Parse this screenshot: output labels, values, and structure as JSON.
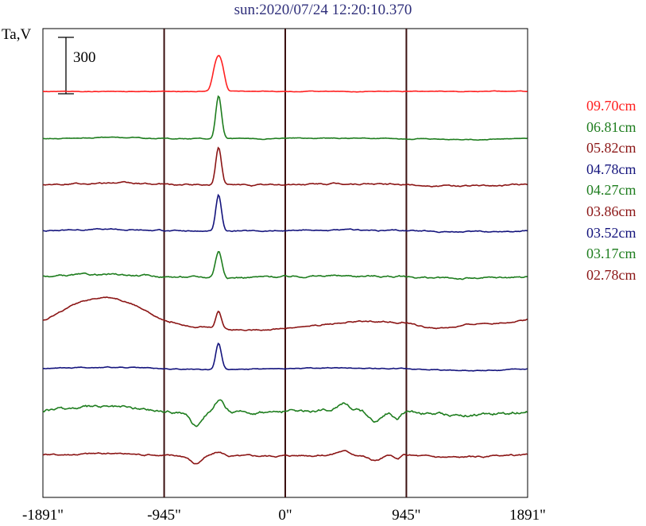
{
  "title": "sun:2020/07/24 12:20:10.370",
  "colors": {
    "title": "#2e2e7a",
    "red": "#ff2020",
    "green": "#1e7d1e",
    "maroon": "#8b1515",
    "blue": "#14147d",
    "axis": "#000000",
    "divider": "#3a1010"
  },
  "chart_data": {
    "type": "line",
    "ylabel": "Ta,V",
    "scale_bar_value": "300",
    "xlim": [
      -1891,
      1891
    ],
    "x_ticks": [
      -1891,
      -945,
      0,
      945,
      1891
    ],
    "x_tick_labels": [
      "-1891\"",
      "-945\"",
      "0\"",
      "945\"",
      "1891\""
    ],
    "vertical_lines": [
      -945,
      0,
      945
    ],
    "series": [
      {
        "name": "09.70cm",
        "color": "red",
        "offset": 0
      },
      {
        "name": "06.81cm",
        "color": "green",
        "offset": -250
      },
      {
        "name": "05.82cm",
        "color": "maroon",
        "offset": -495
      },
      {
        "name": "04.78cm",
        "color": "blue",
        "offset": -740
      },
      {
        "name": "04.27cm",
        "color": "green",
        "offset": -985
      },
      {
        "name": "03.86cm",
        "color": "maroon",
        "offset": -1225
      },
      {
        "name": "03.52cm",
        "color": "blue",
        "offset": -1475
      },
      {
        "name": "03.17cm",
        "color": "green",
        "offset": -1700
      },
      {
        "name": "02.78cm",
        "color": "maroon",
        "offset": -1935
      }
    ]
  }
}
